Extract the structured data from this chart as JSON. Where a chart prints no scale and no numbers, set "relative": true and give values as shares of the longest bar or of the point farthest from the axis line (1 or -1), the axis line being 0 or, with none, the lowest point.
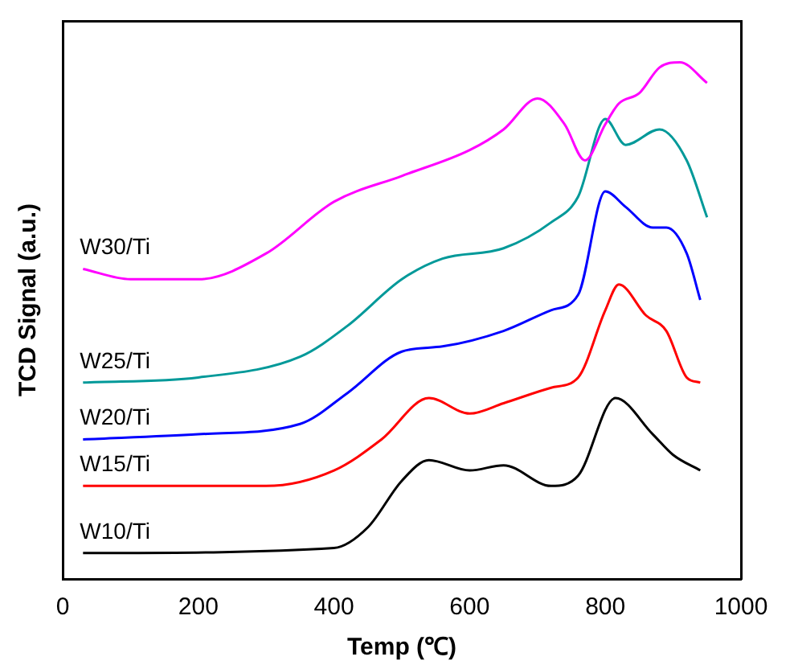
{
  "chart_data": {
    "type": "line",
    "relative": true,
    "xlabel": "Temp (℃)",
    "ylabel": "TCD Signal (a.u.)",
    "xlim": [
      0,
      1000
    ],
    "xticks": [
      0,
      200,
      400,
      600,
      800,
      1000
    ],
    "legend": false,
    "grid": false,
    "marker": "none",
    "line_style": "solid",
    "series": [
      {
        "name": "W30/Ti",
        "color": "#ff00ff",
        "x": [
          30,
          100,
          200,
          300,
          400,
          500,
          600,
          650,
          700,
          740,
          770,
          800,
          820,
          850,
          880,
          910,
          950
        ],
        "values": [
          0.6,
          0.58,
          0.58,
          0.63,
          0.73,
          0.78,
          0.83,
          0.87,
          0.93,
          0.88,
          0.81,
          0.88,
          0.92,
          0.94,
          0.99,
          1,
          0.96
        ]
      },
      {
        "name": "W25/Ti",
        "color": "#009999",
        "x": [
          30,
          200,
          350,
          420,
          500,
          560,
          650,
          720,
          760,
          800,
          830,
          880,
          920,
          950
        ],
        "values": [
          0.38,
          0.39,
          0.43,
          0.49,
          0.58,
          0.62,
          0.64,
          0.69,
          0.74,
          0.89,
          0.84,
          0.87,
          0.81,
          0.7
        ]
      },
      {
        "name": "W20/Ti",
        "color": "#0000ff",
        "x": [
          30,
          200,
          350,
          420,
          500,
          560,
          650,
          720,
          760,
          800,
          830,
          870,
          890,
          920,
          940
        ],
        "values": [
          0.27,
          0.28,
          0.3,
          0.36,
          0.44,
          0.45,
          0.48,
          0.52,
          0.55,
          0.75,
          0.72,
          0.68,
          0.68,
          0.63,
          0.54
        ]
      },
      {
        "name": "W15/Ti",
        "color": "#ff0000",
        "x": [
          30,
          300,
          400,
          470,
          540,
          600,
          650,
          720,
          760,
          800,
          820,
          860,
          890,
          920,
          940
        ],
        "values": [
          0.18,
          0.18,
          0.21,
          0.27,
          0.35,
          0.32,
          0.34,
          0.37,
          0.39,
          0.52,
          0.57,
          0.51,
          0.48,
          0.39,
          0.38
        ]
      },
      {
        "name": "W10/Ti",
        "color": "#000000",
        "x": [
          30,
          400,
          450,
          500,
          540,
          600,
          650,
          720,
          760,
          815,
          870,
          900,
          940
        ],
        "values": [
          0.05,
          0.06,
          0.1,
          0.19,
          0.23,
          0.21,
          0.22,
          0.18,
          0.2,
          0.35,
          0.28,
          0.24,
          0.21
        ]
      }
    ]
  }
}
